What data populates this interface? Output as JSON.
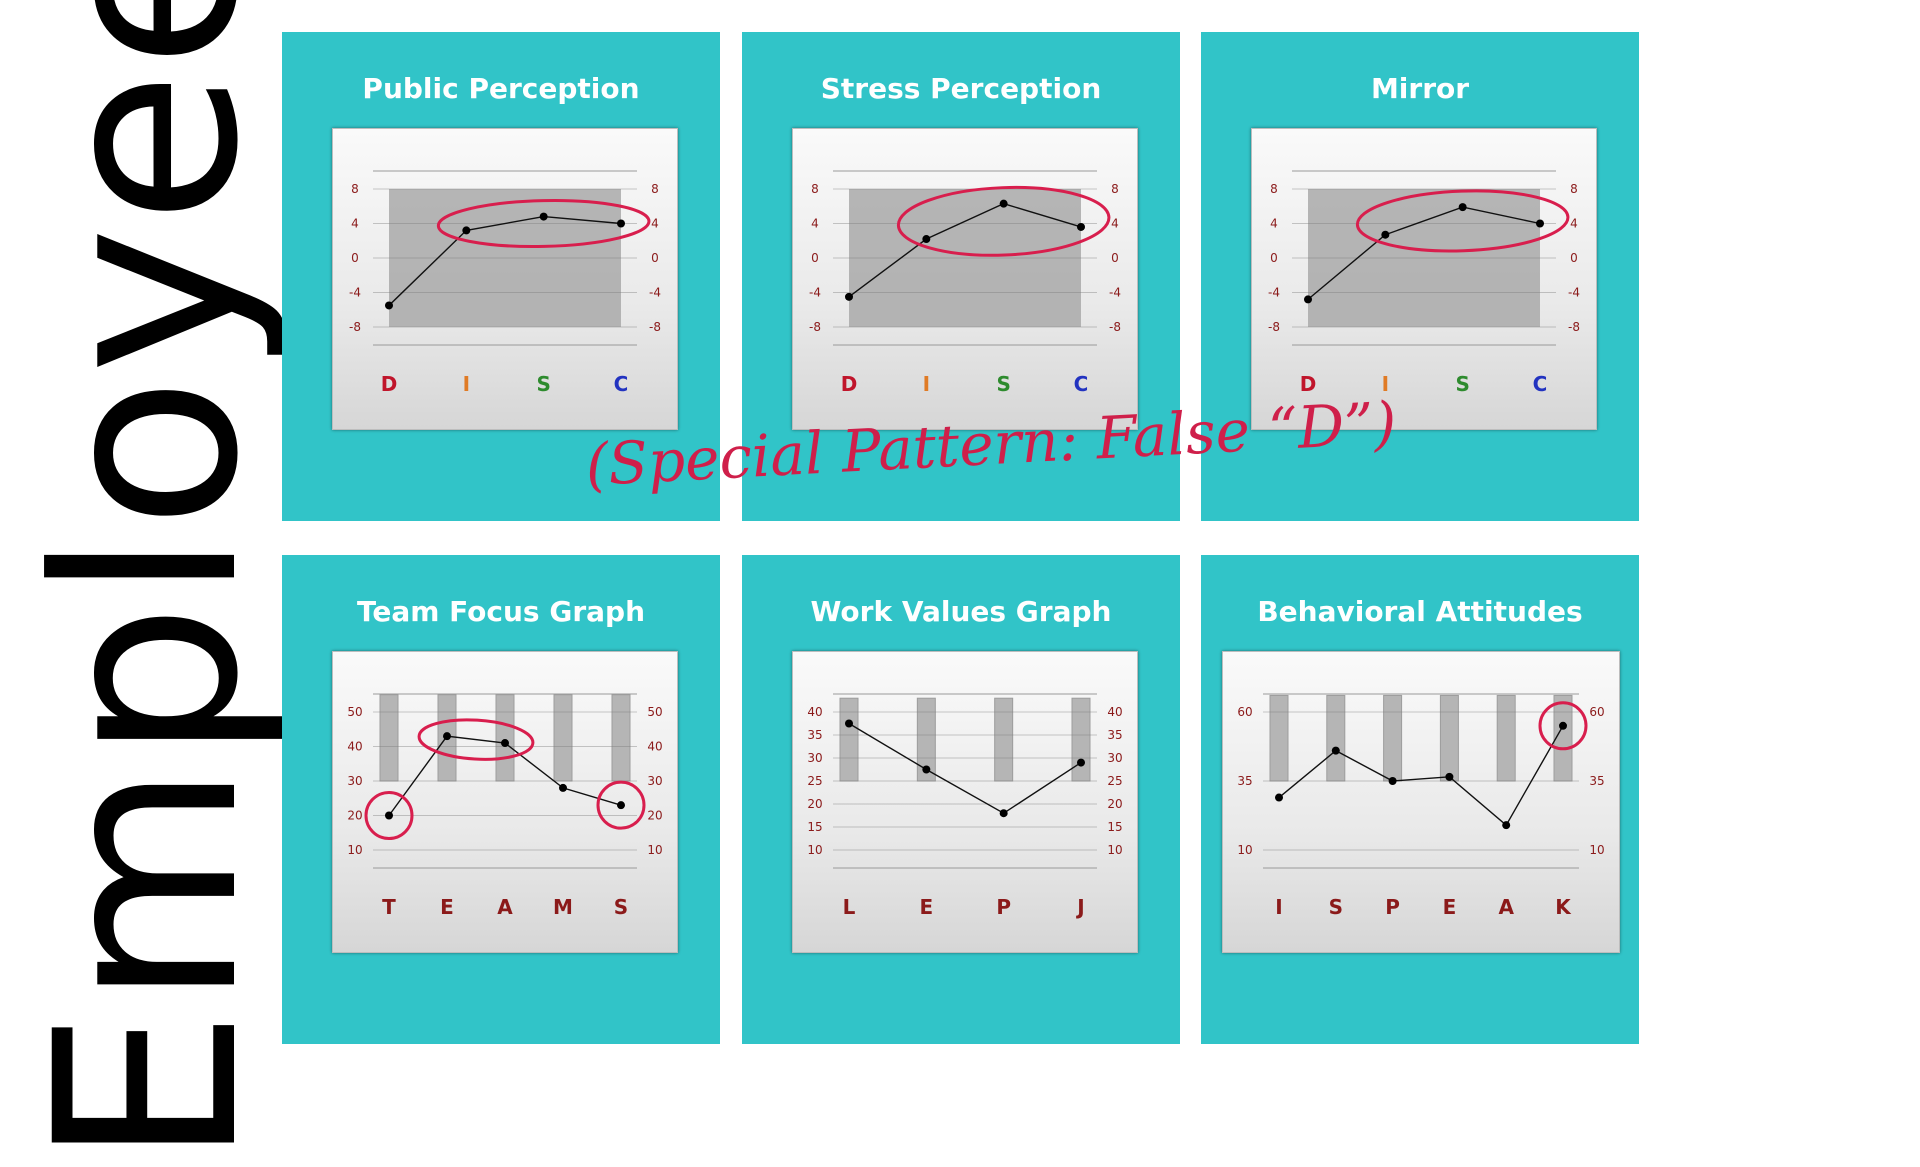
{
  "side_label": "Employee",
  "annotation": "(Special Pattern: False “D”)",
  "colors": {
    "panel": "#31c4c8",
    "axis_label": "#8b1a1a",
    "highlight": "#d81e4d",
    "disc_D": "#c0152b",
    "disc_I": "#e07b25",
    "disc_S": "#2e8b2e",
    "disc_C": "#2233c0"
  },
  "chart_data": [
    {
      "type": "line",
      "title": "Public Perception",
      "categories": [
        "D",
        "I",
        "S",
        "C"
      ],
      "category_colors": [
        "#c0152b",
        "#e07b25",
        "#2e8b2e",
        "#2233c0"
      ],
      "y_ticks": [
        "8",
        "4",
        "0",
        "-4",
        "-8"
      ],
      "ylim": [
        -8,
        8
      ],
      "values": [
        -5.5,
        3.2,
        4.8,
        4.0
      ],
      "background": "shaded-band",
      "highlights": [
        {
          "type": "ellipse",
          "from": 1,
          "to": 3
        }
      ]
    },
    {
      "type": "line",
      "title": "Stress Perception",
      "categories": [
        "D",
        "I",
        "S",
        "C"
      ],
      "category_colors": [
        "#c0152b",
        "#e07b25",
        "#2e8b2e",
        "#2233c0"
      ],
      "y_ticks": [
        "8",
        "4",
        "0",
        "-4",
        "-8"
      ],
      "ylim": [
        -8,
        8
      ],
      "values": [
        -4.5,
        2.2,
        6.3,
        3.6
      ],
      "background": "shaded-band",
      "highlights": [
        {
          "type": "ellipse",
          "from": 1,
          "to": 3
        }
      ]
    },
    {
      "type": "line",
      "title": "Mirror",
      "categories": [
        "D",
        "I",
        "S",
        "C"
      ],
      "category_colors": [
        "#c0152b",
        "#e07b25",
        "#2e8b2e",
        "#2233c0"
      ],
      "y_ticks": [
        "8",
        "4",
        "0",
        "-4",
        "-8"
      ],
      "ylim": [
        -8,
        8
      ],
      "values": [
        -4.8,
        2.7,
        5.9,
        4.0
      ],
      "background": "shaded-band",
      "highlights": [
        {
          "type": "ellipse",
          "from": 1,
          "to": 3
        }
      ]
    },
    {
      "type": "line",
      "title": "Team Focus Graph",
      "categories": [
        "T",
        "E",
        "A",
        "M",
        "S"
      ],
      "category_colors": [
        "#8b1a1a",
        "#8b1a1a",
        "#8b1a1a",
        "#8b1a1a",
        "#8b1a1a"
      ],
      "y_ticks": [
        "50",
        "40",
        "30",
        "20",
        "10"
      ],
      "ylim": [
        10,
        50
      ],
      "values": [
        20,
        43,
        41,
        28,
        23
      ],
      "background": "bars",
      "bar_range": [
        30,
        55
      ],
      "highlights": [
        {
          "type": "circle",
          "at": 0
        },
        {
          "type": "ellipse",
          "from": 1,
          "to": 2
        },
        {
          "type": "circle",
          "at": 4
        }
      ]
    },
    {
      "type": "line",
      "title": "Work Values Graph",
      "categories": [
        "L",
        "E",
        "P",
        "J"
      ],
      "category_colors": [
        "#8b1a1a",
        "#8b1a1a",
        "#8b1a1a",
        "#8b1a1a"
      ],
      "y_ticks": [
        "40",
        "35",
        "30",
        "25",
        "20",
        "15",
        "10"
      ],
      "ylim": [
        10,
        40
      ],
      "values": [
        37.5,
        27.5,
        18,
        29
      ],
      "background": "bars",
      "bar_range": [
        25,
        43
      ],
      "highlights": []
    },
    {
      "type": "line",
      "title": "Behavioral Attitudes",
      "categories": [
        "I",
        "S",
        "P",
        "E",
        "A",
        "K"
      ],
      "category_colors": [
        "#8b1a1a",
        "#8b1a1a",
        "#8b1a1a",
        "#8b1a1a",
        "#8b1a1a",
        "#8b1a1a"
      ],
      "y_ticks": [
        "60",
        "35",
        "10"
      ],
      "ylim": [
        10,
        60
      ],
      "values": [
        29,
        46,
        35,
        36.5,
        19,
        55
      ],
      "background": "bars",
      "bar_range": [
        35,
        66
      ],
      "highlights": [
        {
          "type": "circle",
          "at": 5
        }
      ]
    }
  ]
}
